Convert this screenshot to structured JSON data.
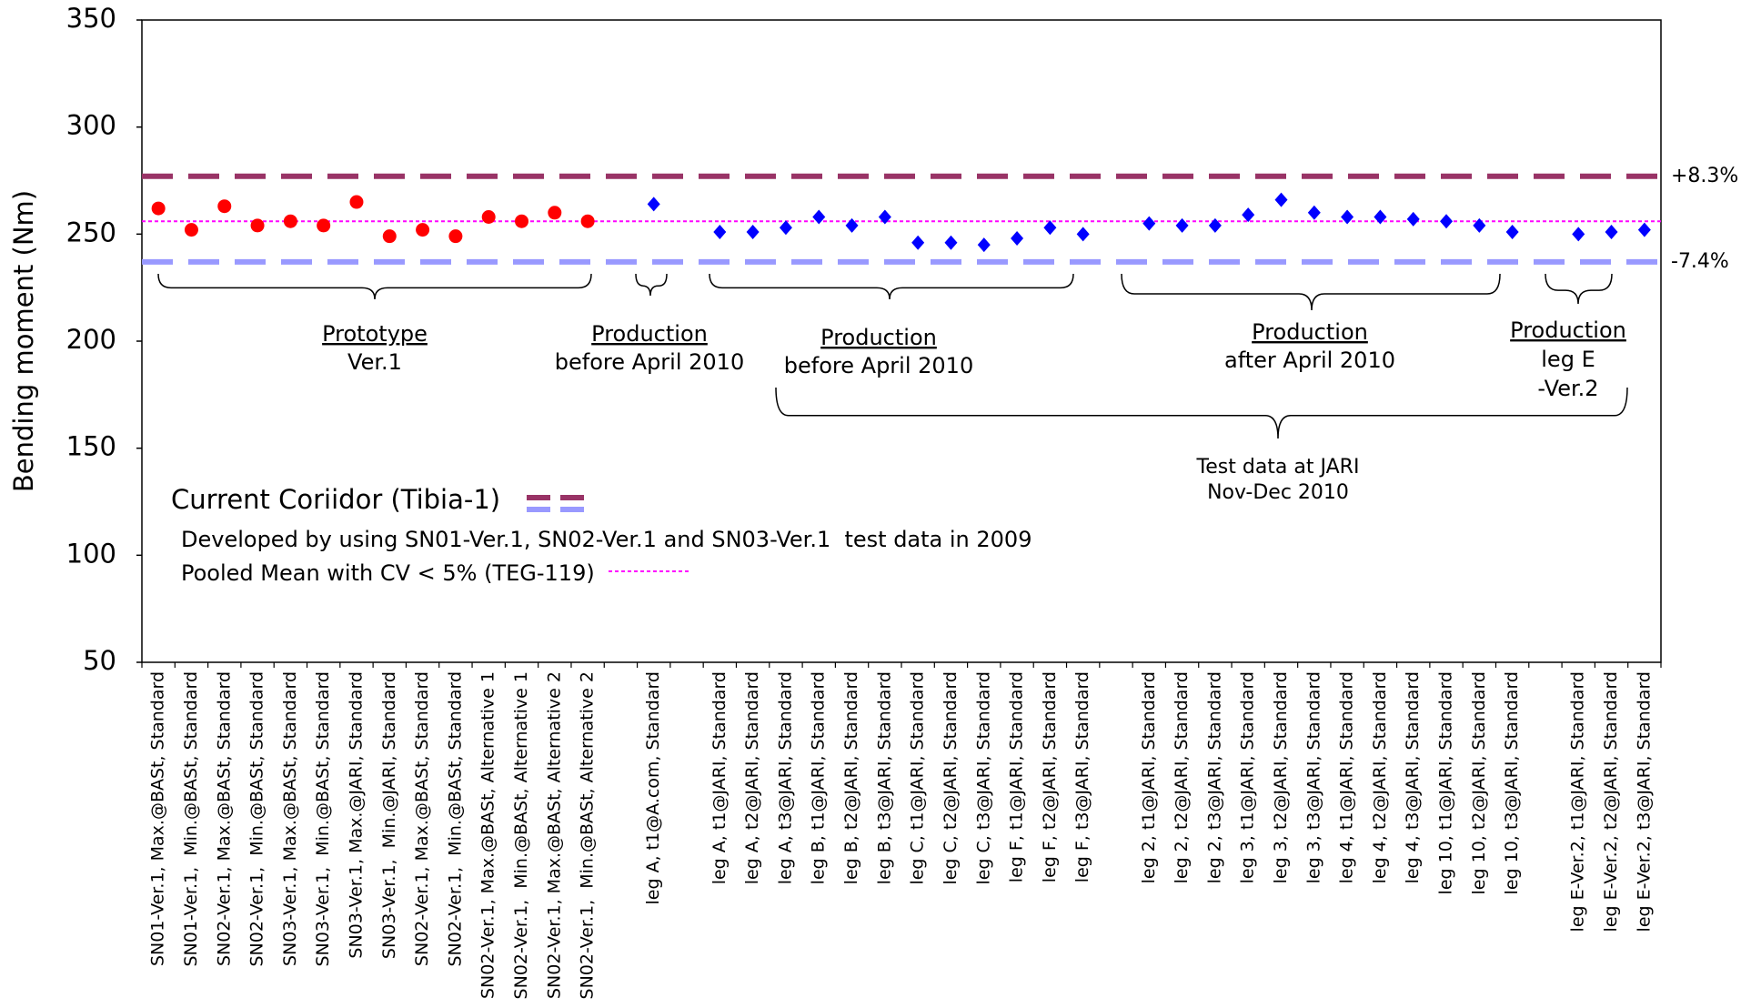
{
  "chart_data": {
    "type": "dot",
    "y_label": "Bending moment (Nm)",
    "ylim": [
      50,
      350
    ],
    "yticks": [
      50,
      100,
      150,
      200,
      250,
      300,
      350
    ],
    "categories": [
      "SN01-Ver.1, Max.@BASt, Standard",
      "SN01-Ver.1,  Min.@BASt, Standard",
      "SN02-Ver.1, Max.@BASt, Standard",
      "SN02-Ver.1,  Min.@BASt, Standard",
      "SN03-Ver.1, Max.@BASt, Standard",
      "SN03-Ver.1,  Min.@BASt, Standard",
      "SN03-Ver.1, Max.@JARI, Standard",
      "SN03-Ver.1,  Min.@JARI, Standard",
      "SN02-Ver.1, Max.@BASt, Standard",
      "SN02-Ver.1,  Min.@BASt, Standard",
      "SN02-Ver.1, Max.@BASt, Alternative 1",
      "SN02-Ver.1,  Min.@BASt, Alternative 1",
      "SN02-Ver.1, Max.@BASt, Alternative 2",
      "SN02-Ver.1,  Min.@BASt, Alternative 2",
      null,
      "leg A, t1@A.com, Standard",
      null,
      "leg A, t1@JARI, Standard",
      "leg A, t2@JARI, Standard",
      "leg A, t3@JARI, Standard",
      "leg B, t1@JARI, Standard",
      "leg B, t2@JARI, Standard",
      "leg B, t3@JARI, Standard",
      "leg C, t1@JARI, Standard",
      "leg C, t2@JARI, Standard",
      "leg C, t3@JARI, Standard",
      "leg F, t1@JARI, Standard",
      "leg F, t2@JARI, Standard",
      "leg F, t3@JARI, Standard",
      null,
      "leg 2, t1@JARI, Standard",
      "leg 2, t2@JARI, Standard",
      "leg 2, t3@JARI, Standard",
      "leg 3, t1@JARI, Standard",
      "leg 3, t2@JARI, Standard",
      "leg 3, t3@JARI, Standard",
      "leg 4, t1@JARI, Standard",
      "leg 4, t2@JARI, Standard",
      "leg 4, t3@JARI, Standard",
      "leg 10, t1@JARI, Standard",
      "leg 10, t2@JARI, Standard",
      "leg 10, t3@JARI, Standard",
      null,
      "leg E-Ver.2, t1@JARI, Standard",
      "leg E-Ver.2, t2@JARI, Standard",
      "leg E-Ver.2, t3@JARI, Standard"
    ],
    "series": [
      {
        "color": "#ff0000",
        "marker": "circle",
        "values": [
          262,
          252,
          263,
          254,
          256,
          254,
          265,
          249,
          252,
          249,
          258,
          256,
          260,
          256,
          null,
          null,
          null,
          null,
          null,
          null,
          null,
          null,
          null,
          null,
          null,
          null,
          null,
          null,
          null,
          null,
          null,
          null,
          null,
          null,
          null,
          null,
          null,
          null,
          null,
          null,
          null,
          null,
          null,
          null,
          null,
          null
        ]
      },
      {
        "color": "#0000ff",
        "marker": "diamond",
        "values": [
          null,
          null,
          null,
          null,
          null,
          null,
          null,
          null,
          null,
          null,
          null,
          null,
          null,
          null,
          null,
          264,
          null,
          251,
          251,
          253,
          258,
          254,
          258,
          246,
          246,
          245,
          248,
          253,
          250,
          null,
          255,
          254,
          254,
          259,
          266,
          260,
          258,
          258,
          257,
          256,
          254,
          251,
          null,
          250,
          251,
          252
        ]
      }
    ],
    "reference_lines": [
      {
        "value": 277,
        "label": "+8.3%",
        "color": "#993366",
        "style": "dashed"
      },
      {
        "value": 256,
        "color": "#ff00ff",
        "style": "dotted"
      },
      {
        "value": 237,
        "label": "-7.4%",
        "color": "#9999ff",
        "style": "dashed"
      }
    ],
    "annotations": [
      {
        "lines": [
          "Prototype",
          "Ver.1"
        ],
        "underlined": true
      },
      {
        "lines": [
          "Production",
          "before April 2010"
        ],
        "underlined": true
      },
      {
        "lines": [
          "Production",
          "before April 2010"
        ],
        "underlined": true
      },
      {
        "lines": [
          "Production",
          "after April 2010"
        ],
        "underlined": true
      },
      {
        "lines": [
          "Production",
          "leg E",
          "-Ver.2"
        ],
        "underlined": true
      },
      {
        "lines": [
          "Test data at JARI",
          "Nov-Dec 2010"
        ],
        "underlined": false
      }
    ],
    "legend": {
      "corridor": "Current Coriidor (Tibia-1)",
      "note": "Developed by using SN01-Ver.1, SN02-Ver.1 and SN03-Ver.1  test data in 2009",
      "mean": "Pooled Mean with CV < 5% (TEG-119)"
    }
  }
}
